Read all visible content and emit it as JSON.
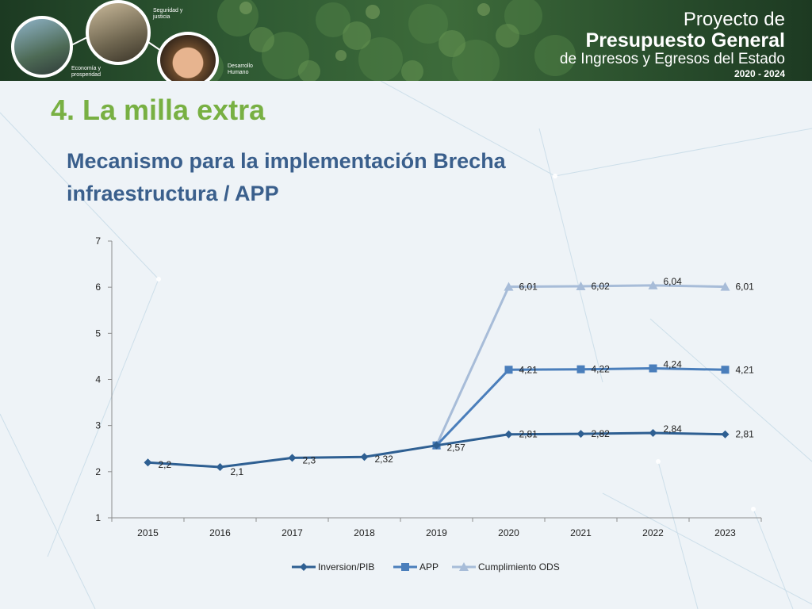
{
  "banner": {
    "title_line1": "Proyecto de",
    "title_line2": "Presupuesto General",
    "title_line3": "de Ingresos y Egresos del Estado",
    "title_line4": "2020 - 2024",
    "labels": {
      "economia_line1": "Economía y",
      "economia_line2": "prosperidad",
      "seguridad_line1": "Seguridad y",
      "seguridad_line2": "justicia",
      "desarrollo_line1": "Desarrollo",
      "desarrollo_line2": "Humano"
    }
  },
  "page": {
    "title": "4. La milla extra",
    "subtitle": "Mecanismo para la implementación Brecha infraestructura / APP"
  },
  "chart_data": {
    "type": "line",
    "categories": [
      "2015",
      "2016",
      "2017",
      "2018",
      "2019",
      "2020",
      "2021",
      "2022",
      "2023"
    ],
    "series": [
      {
        "name": "Inversion/PIB",
        "values": [
          2.2,
          2.1,
          2.3,
          2.32,
          2.57,
          2.81,
          2.82,
          2.84,
          2.81
        ],
        "labels": [
          "2,2",
          "2,1",
          "2,3",
          "2,32",
          "2,57",
          "2,81",
          "2,82",
          "2,84",
          "2,81"
        ],
        "color": "#2e5f92",
        "marker": "diamond"
      },
      {
        "name": "APP",
        "values": [
          null,
          null,
          null,
          null,
          2.57,
          4.21,
          4.22,
          4.24,
          4.21
        ],
        "labels": [
          "",
          "",
          "",
          "",
          "",
          "4,21",
          "4,22",
          "4,24",
          "4,21"
        ],
        "color": "#4a7ebb",
        "marker": "square"
      },
      {
        "name": "Cumplimiento ODS",
        "values": [
          null,
          null,
          null,
          null,
          2.57,
          6.01,
          6.02,
          6.04,
          6.01
        ],
        "labels": [
          "",
          "",
          "",
          "",
          "",
          "6,01",
          "6,02",
          "6,04",
          "6,01"
        ],
        "color": "#a7bcd8",
        "marker": "triangle"
      }
    ],
    "y_ticks": [
      "1",
      "2",
      "3",
      "4",
      "5",
      "6",
      "7"
    ],
    "ylim": [
      1,
      7
    ],
    "grid": false,
    "legend_position": "bottom"
  }
}
